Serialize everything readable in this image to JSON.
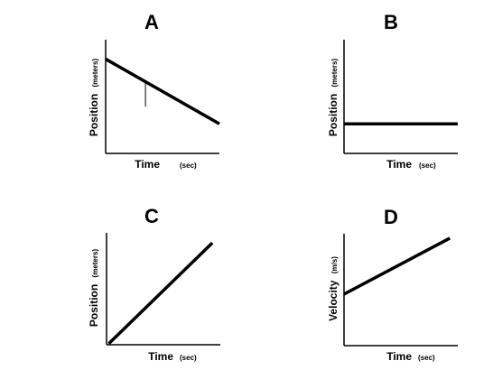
{
  "chart_data": [
    {
      "panel": "A",
      "type": "line",
      "title": "A",
      "xlabel": "Time",
      "xunit": "(sec)",
      "ylabel": "Position",
      "yunit": "(meters)",
      "xlim": [
        0,
        10
      ],
      "ylim": [
        0,
        10
      ],
      "series": [
        {
          "x": [
            0,
            10
          ],
          "y": [
            8.3,
            2.6
          ]
        }
      ],
      "annotations": [
        {
          "type": "vertical-tick",
          "x": 3.5,
          "y_from": 4.1,
          "y_to": 6.3
        }
      ],
      "grid": false
    },
    {
      "panel": "B",
      "type": "line",
      "title": "B",
      "xlabel": "Time",
      "xunit": "(sec)",
      "ylabel": "Position",
      "yunit": "(meters)",
      "xlim": [
        0,
        10
      ],
      "ylim": [
        0,
        10
      ],
      "series": [
        {
          "x": [
            0,
            10
          ],
          "y": [
            2.6,
            2.6
          ]
        }
      ],
      "grid": false
    },
    {
      "panel": "C",
      "type": "line",
      "title": "C",
      "xlabel": "Time",
      "xunit": "(sec)",
      "ylabel": "Position",
      "yunit": "(meters)",
      "xlim": [
        0,
        10
      ],
      "ylim": [
        0,
        10
      ],
      "series": [
        {
          "x": [
            0.2,
            9.3
          ],
          "y": [
            0.1,
            9.1
          ]
        }
      ],
      "grid": false
    },
    {
      "panel": "D",
      "type": "line",
      "title": "D",
      "xlabel": "Time",
      "xunit": "(sec)",
      "ylabel": "Velocity",
      "yunit": "(m/s)",
      "xlim": [
        0,
        10
      ],
      "ylim": [
        0,
        10
      ],
      "series": [
        {
          "x": [
            0,
            9.3
          ],
          "y": [
            4.6,
            9.6
          ]
        }
      ],
      "grid": false
    }
  ]
}
